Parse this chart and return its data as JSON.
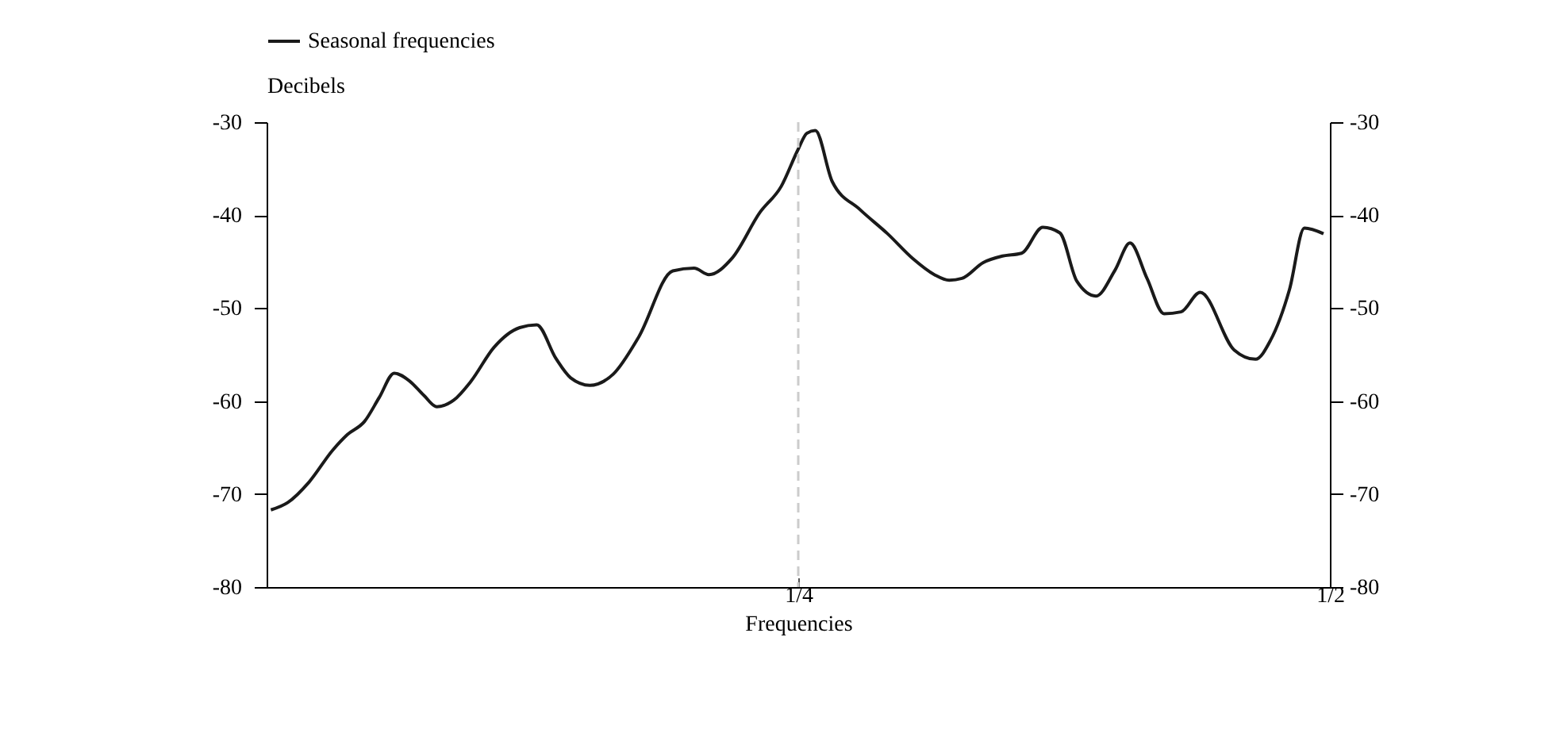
{
  "chart_data": {
    "type": "line",
    "xlabel": "Frequencies",
    "ylabel": "Decibels",
    "legend": "top left",
    "grid": false,
    "xlim": [
      0,
      0.5
    ],
    "xticks": [
      {
        "value": 0.25,
        "label": "1/4"
      },
      {
        "value": 0.5,
        "label": "1/2"
      }
    ],
    "ylim": [
      -80,
      -30
    ],
    "yticks": [
      -80,
      -70,
      -60,
      -50,
      -40,
      -30
    ],
    "y2lim": [
      -80,
      -30
    ],
    "y2ticks": [
      -80,
      -70,
      -60,
      -50,
      -40,
      -30
    ],
    "ref_lines": [
      {
        "axis": "x",
        "value": 0.25,
        "color": "#cccccc",
        "line_style": "dashed"
      }
    ],
    "series": [
      {
        "name": "Seasonal frequencies",
        "color": "#1a1a1a",
        "x": [
          0.002,
          0.01,
          0.02,
          0.031,
          0.038,
          0.046,
          0.053,
          0.06,
          0.067,
          0.074,
          0.08,
          0.088,
          0.096,
          0.107,
          0.119,
          0.127,
          0.136,
          0.143,
          0.152,
          0.163,
          0.175,
          0.191,
          0.201,
          0.208,
          0.219,
          0.232,
          0.242,
          0.25,
          0.254,
          0.258,
          0.266,
          0.279,
          0.292,
          0.304,
          0.314,
          0.321,
          0.327,
          0.337,
          0.346,
          0.355,
          0.365,
          0.373,
          0.381,
          0.39,
          0.399,
          0.406,
          0.414,
          0.422,
          0.43,
          0.439,
          0.455,
          0.465,
          0.472,
          0.481,
          0.488,
          0.497
        ],
        "values": [
          -71.7,
          -70.9,
          -68.7,
          -65.3,
          -63.6,
          -62.2,
          -59.6,
          -57.0,
          -57.8,
          -59.4,
          -60.6,
          -59.9,
          -57.9,
          -54.2,
          -52.1,
          -51.8,
          -55.4,
          -57.5,
          -58.3,
          -57.1,
          -53.1,
          -46.0,
          -45.7,
          -46.4,
          -44.6,
          -39.7,
          -36.9,
          -32.9,
          -31.2,
          -30.9,
          -36.4,
          -39.4,
          -42.0,
          -44.7,
          -46.4,
          -47.0,
          -46.8,
          -45.1,
          -44.4,
          -44.1,
          -41.3,
          -41.9,
          -47.1,
          -48.7,
          -45.9,
          -43.0,
          -46.8,
          -50.6,
          -50.4,
          -48.3,
          -54.5,
          -55.5,
          -53.5,
          -48.0,
          -41.4,
          -42.0
        ]
      }
    ]
  }
}
